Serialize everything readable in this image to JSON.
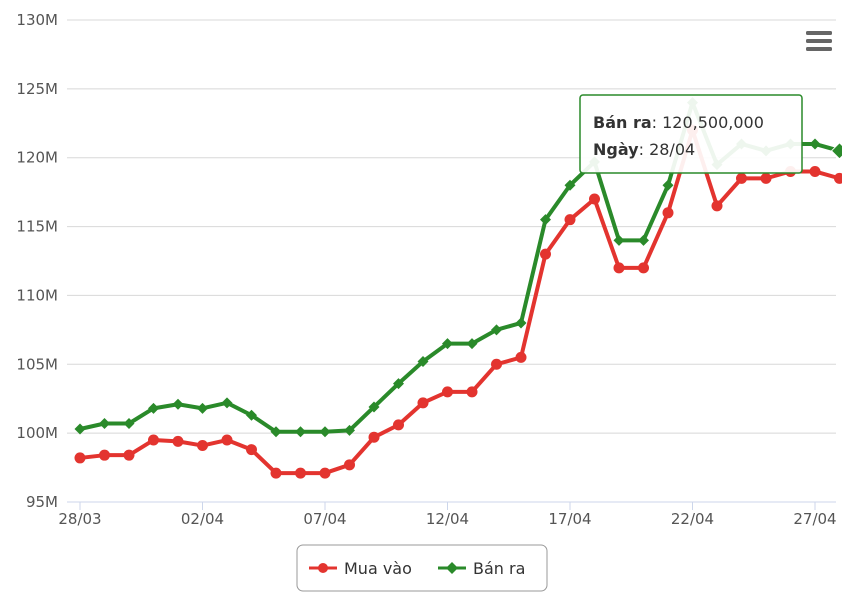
{
  "menu": {
    "icon": "hamburger-menu-icon"
  },
  "chart_data": {
    "type": "line",
    "x": [
      "28/03",
      "29/03",
      "30/03",
      "31/03",
      "01/04",
      "02/04",
      "03/04",
      "04/04",
      "05/04",
      "06/04",
      "07/04",
      "08/04",
      "09/04",
      "10/04",
      "11/04",
      "12/04",
      "13/04",
      "14/04",
      "15/04",
      "16/04",
      "17/04",
      "18/04",
      "19/04",
      "20/04",
      "21/04",
      "22/04",
      "23/04",
      "24/04",
      "25/04",
      "26/04",
      "27/04",
      "28/04"
    ],
    "x_tick_labels": [
      "28/03",
      "02/04",
      "07/04",
      "12/04",
      "17/04",
      "22/04",
      "27/04"
    ],
    "y_tick_labels": [
      "95M",
      "100M",
      "105M",
      "110M",
      "115M",
      "120M",
      "125M",
      "130M"
    ],
    "ylim": [
      95,
      130
    ],
    "y_unit": "M",
    "grid": true,
    "legend_position": "bottom",
    "series": [
      {
        "name": "Mua vào",
        "color": "#e3342f",
        "marker": "circle",
        "values": [
          98.2,
          98.4,
          98.4,
          99.5,
          99.4,
          99.1,
          99.5,
          98.8,
          97.1,
          97.1,
          97.1,
          97.7,
          99.7,
          100.6,
          102.2,
          103.0,
          103.0,
          105.0,
          105.5,
          113.0,
          115.5,
          117.0,
          112.0,
          112.0,
          116.0,
          122.0,
          116.5,
          118.5,
          118.5,
          119.0,
          119.0,
          118.5
        ]
      },
      {
        "name": "Bán ra",
        "color": "#2a8a2a",
        "marker": "diamond",
        "values": [
          100.3,
          100.7,
          100.7,
          101.8,
          102.1,
          101.8,
          102.2,
          101.3,
          100.1,
          100.1,
          100.1,
          100.2,
          101.9,
          103.6,
          105.2,
          106.5,
          106.5,
          107.5,
          108.0,
          115.5,
          118.0,
          119.7,
          114.0,
          114.0,
          118.0,
          124.0,
          119.5,
          121.0,
          120.5,
          121.0,
          121.0,
          120.5
        ]
      }
    ],
    "tooltip": {
      "series_label": "Bán ra",
      "value_text": "120,500,000",
      "date_label": "Ngày",
      "date_value": "28/04"
    }
  }
}
